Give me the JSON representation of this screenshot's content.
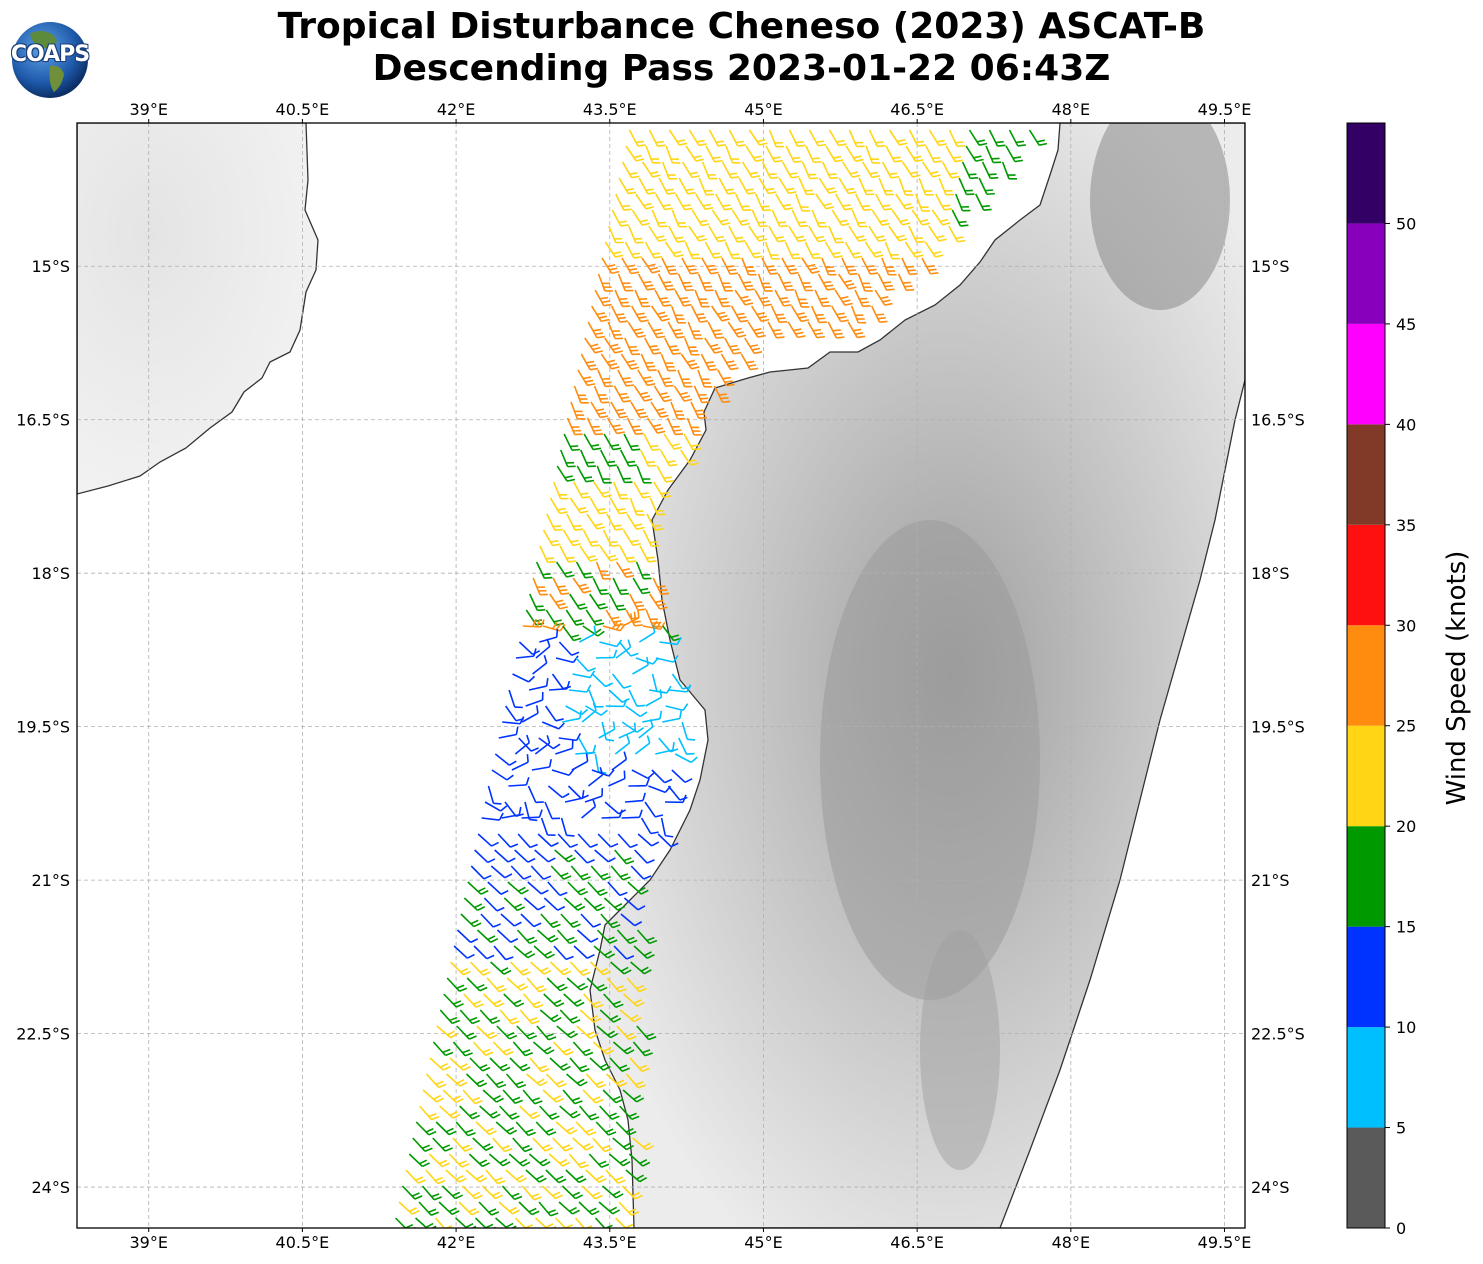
{
  "title": {
    "line1": "Tropical Disturbance Cheneso (2023) ASCAT-B",
    "line2": "Descending Pass 2023-01-22 06:43Z"
  },
  "logo": {
    "text": "COAPS",
    "icon": "globe-icon"
  },
  "map": {
    "lon_range": [
      38.3,
      49.7
    ],
    "lat_range": [
      -24.4,
      -13.6
    ],
    "lon_ticks": [
      "39°E",
      "40.5°E",
      "42°E",
      "43.5°E",
      "45°E",
      "46.5°E",
      "48°E",
      "49.5°E"
    ],
    "lon_tick_values": [
      39,
      40.5,
      42,
      43.5,
      45,
      46.5,
      48,
      49.5
    ],
    "lat_ticks": [
      "15°S",
      "16.5°S",
      "18°S",
      "19.5°S",
      "21°S",
      "22.5°S",
      "24°S"
    ],
    "lat_tick_values": [
      -15,
      -16.5,
      -18,
      -19.5,
      -21,
      -22.5,
      -24
    ],
    "gridlines": true,
    "land_shading": "grayscale-topography",
    "ocean_color": "#ffffff",
    "coastline_color": "#333333",
    "wind_barbs": "ASCAT scatterometer swath over Mozambique Channel"
  },
  "colorbar": {
    "label": "Wind Speed (knots)",
    "ticks": [
      "0",
      "5",
      "10",
      "15",
      "20",
      "25",
      "30",
      "35",
      "40",
      "45",
      "50"
    ],
    "tick_values": [
      0,
      5,
      10,
      15,
      20,
      25,
      30,
      35,
      40,
      45,
      50
    ],
    "range": [
      0,
      55
    ],
    "bins": [
      {
        "min": 0,
        "max": 5,
        "color": "#5a5a5a"
      },
      {
        "min": 5,
        "max": 10,
        "color": "#00bfff"
      },
      {
        "min": 10,
        "max": 15,
        "color": "#0033ff"
      },
      {
        "min": 15,
        "max": 20,
        "color": "#009900"
      },
      {
        "min": 20,
        "max": 25,
        "color": "#ffd514"
      },
      {
        "min": 25,
        "max": 30,
        "color": "#ff8c0f"
      },
      {
        "min": 30,
        "max": 35,
        "color": "#ff1010"
      },
      {
        "min": 35,
        "max": 40,
        "color": "#823a28"
      },
      {
        "min": 40,
        "max": 45,
        "color": "#ff00ff"
      },
      {
        "min": 45,
        "max": 50,
        "color": "#8800bb"
      },
      {
        "min": 50,
        "max": 55,
        "color": "#330066"
      }
    ]
  }
}
